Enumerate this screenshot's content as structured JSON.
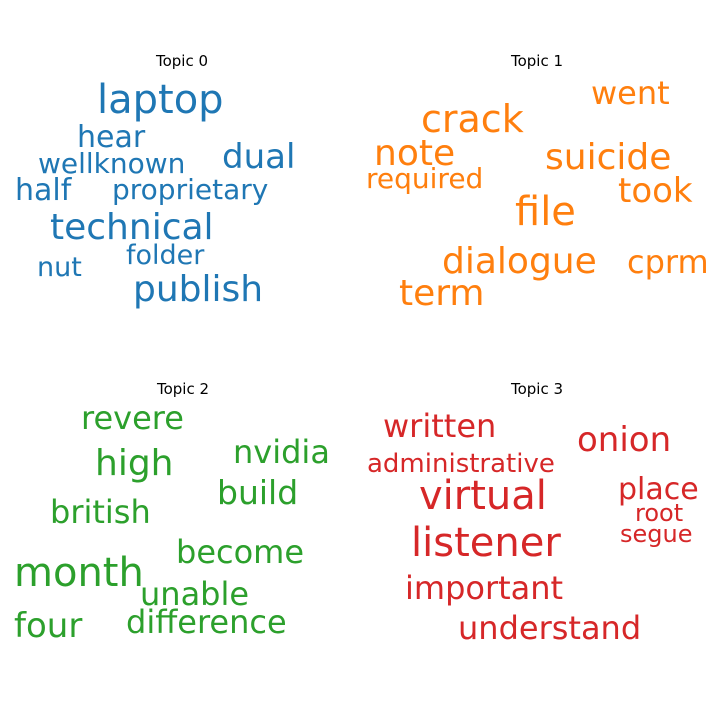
{
  "chart_data": [
    {
      "type": "wordcloud",
      "title": "Topic 0",
      "color": "#1f77b4",
      "words": [
        {
          "text": "laptop",
          "weight": 1.0
        },
        {
          "text": "hear",
          "weight": 0.7
        },
        {
          "text": "dual",
          "weight": 0.8
        },
        {
          "text": "wellknown",
          "weight": 0.66
        },
        {
          "text": "half",
          "weight": 0.7
        },
        {
          "text": "proprietary",
          "weight": 0.66
        },
        {
          "text": "technical",
          "weight": 0.88
        },
        {
          "text": "folder",
          "weight": 0.63
        },
        {
          "text": "nut",
          "weight": 0.63
        },
        {
          "text": "publish",
          "weight": 0.88
        }
      ]
    },
    {
      "type": "wordcloud",
      "title": "Topic 1",
      "color": "#ff7f0e",
      "words": [
        {
          "text": "went",
          "weight": 0.8
        },
        {
          "text": "crack",
          "weight": 0.88
        },
        {
          "text": "note",
          "weight": 0.85
        },
        {
          "text": "suicide",
          "weight": 0.85
        },
        {
          "text": "required",
          "weight": 0.7
        },
        {
          "text": "took",
          "weight": 0.85
        },
        {
          "text": "file",
          "weight": 1.0
        },
        {
          "text": "dialogue",
          "weight": 0.9
        },
        {
          "text": "cprm",
          "weight": 0.82
        },
        {
          "text": "term",
          "weight": 0.9
        }
      ]
    },
    {
      "type": "wordcloud",
      "title": "Topic 2",
      "color": "#2ca02c",
      "words": [
        {
          "text": "revere",
          "weight": 0.75
        },
        {
          "text": "nvidia",
          "weight": 0.75
        },
        {
          "text": "high",
          "weight": 0.88
        },
        {
          "text": "build",
          "weight": 0.77
        },
        {
          "text": "british",
          "weight": 0.76
        },
        {
          "text": "become",
          "weight": 0.75
        },
        {
          "text": "month",
          "weight": 1.0
        },
        {
          "text": "unable",
          "weight": 0.76
        },
        {
          "text": "four",
          "weight": 0.82
        },
        {
          "text": "difference",
          "weight": 0.76
        }
      ]
    },
    {
      "type": "wordcloud",
      "title": "Topic 3",
      "color": "#d62728",
      "words": [
        {
          "text": "written",
          "weight": 0.77
        },
        {
          "text": "onion",
          "weight": 0.85
        },
        {
          "text": "administrative",
          "weight": 0.66
        },
        {
          "text": "virtual",
          "weight": 1.0
        },
        {
          "text": "place",
          "weight": 0.75
        },
        {
          "text": "root",
          "weight": 0.63
        },
        {
          "text": "listener",
          "weight": 0.97
        },
        {
          "text": "segue",
          "weight": 0.63
        },
        {
          "text": "important",
          "weight": 0.77
        },
        {
          "text": "understand",
          "weight": 0.77
        }
      ]
    }
  ]
}
